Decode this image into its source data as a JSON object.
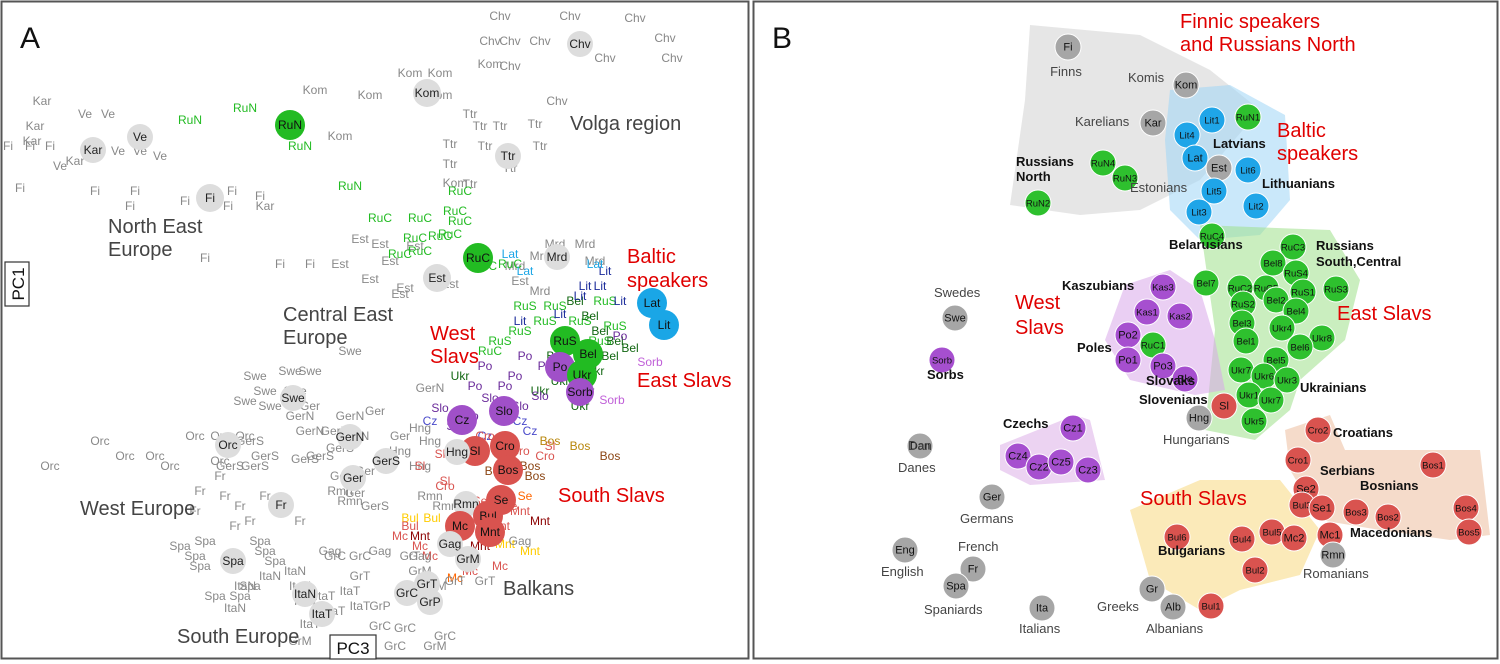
{
  "panel_a": {
    "letter": "A",
    "axis_y_label": "PC1",
    "axis_x_label": "PC3",
    "colors": {
      "grey": "#888888",
      "green": "#22bb22",
      "blue": "#1aa6e6",
      "red": "#d9534f",
      "purple": "#a050c8",
      "darkgreen": "#116611"
    },
    "region_labels": [
      {
        "text": "Volga region",
        "color": "#444444"
      },
      {
        "text": "North East",
        "color": "#444444"
      },
      {
        "text": "Europe",
        "color": "#444444"
      },
      {
        "text": "Central East",
        "color": "#444444"
      },
      {
        "text": "Europe",
        "color": "#444444"
      },
      {
        "text": "West Europe",
        "color": "#444444"
      },
      {
        "text": "South Europe",
        "color": "#444444"
      },
      {
        "text": "Balkans",
        "color": "#444444"
      },
      {
        "text": "West",
        "color": "#e00000"
      },
      {
        "text": "Slavs",
        "color": "#e00000"
      },
      {
        "text": "Baltic",
        "color": "#e00000"
      },
      {
        "text": "speakers",
        "color": "#e00000"
      },
      {
        "text": "East Slavs",
        "color": "#e00000"
      },
      {
        "text": "South Slavs",
        "color": "#e00000"
      }
    ],
    "centroids": [
      {
        "label": "Chv",
        "color": "#dddddd",
        "text_color": "#222222"
      },
      {
        "label": "Kom",
        "color": "#dddddd",
        "text_color": "#222222"
      },
      {
        "label": "RuN",
        "color": "#22bb22",
        "text_color": "#111111"
      },
      {
        "label": "Ve",
        "color": "#dddddd",
        "text_color": "#222222"
      },
      {
        "label": "Kar",
        "color": "#dddddd",
        "text_color": "#222222"
      },
      {
        "label": "Ttr",
        "color": "#dddddd",
        "text_color": "#222222"
      },
      {
        "label": "Fi",
        "color": "#dddddd",
        "text_color": "#222222"
      },
      {
        "label": "RuC",
        "color": "#22bb22",
        "text_color": "#111111"
      },
      {
        "label": "Mrd",
        "color": "#dddddd",
        "text_color": "#222222"
      },
      {
        "label": "Est",
        "color": "#dddddd",
        "text_color": "#222222"
      },
      {
        "label": "Lat",
        "color": "#1aa6e6",
        "text_color": "#111111"
      },
      {
        "label": "Lit",
        "color": "#1aa6e6",
        "text_color": "#111111"
      },
      {
        "label": "RuS",
        "color": "#22bb22",
        "text_color": "#111111"
      },
      {
        "label": "Bel",
        "color": "#22bb22",
        "text_color": "#111111"
      },
      {
        "label": "Po",
        "color": "#a050c8",
        "text_color": "#111111"
      },
      {
        "label": "Ukr",
        "color": "#22bb22",
        "text_color": "#111111"
      },
      {
        "label": "Sorb",
        "color": "#a050c8",
        "text_color": "#111111"
      },
      {
        "label": "Swe",
        "color": "#dddddd",
        "text_color": "#222222"
      },
      {
        "label": "Slo",
        "color": "#a050c8",
        "text_color": "#111111"
      },
      {
        "label": "Cz",
        "color": "#a050c8",
        "text_color": "#111111"
      },
      {
        "label": "GerN",
        "color": "#dddddd",
        "text_color": "#222222"
      },
      {
        "label": "Orc",
        "color": "#dddddd",
        "text_color": "#222222"
      },
      {
        "label": "Sl",
        "color": "#d9534f",
        "text_color": "#111111"
      },
      {
        "label": "Cro",
        "color": "#d9534f",
        "text_color": "#111111"
      },
      {
        "label": "Hng",
        "color": "#dddddd",
        "text_color": "#222222"
      },
      {
        "label": "Bos",
        "color": "#d9534f",
        "text_color": "#111111"
      },
      {
        "label": "GerS",
        "color": "#dddddd",
        "text_color": "#222222"
      },
      {
        "label": "Ger",
        "color": "#dddddd",
        "text_color": "#222222"
      },
      {
        "label": "Fr",
        "color": "#dddddd",
        "text_color": "#222222"
      },
      {
        "label": "Rmn",
        "color": "#dddddd",
        "text_color": "#222222"
      },
      {
        "label": "Se",
        "color": "#d9534f",
        "text_color": "#111111"
      },
      {
        "label": "Bul",
        "color": "#d9534f",
        "text_color": "#111111"
      },
      {
        "label": "Mc",
        "color": "#d9534f",
        "text_color": "#111111"
      },
      {
        "label": "Mnt",
        "color": "#d9534f",
        "text_color": "#111111"
      },
      {
        "label": "Gag",
        "color": "#dddddd",
        "text_color": "#222222"
      },
      {
        "label": "GrM",
        "color": "#dddddd",
        "text_color": "#222222"
      },
      {
        "label": "Spa",
        "color": "#dddddd",
        "text_color": "#222222"
      },
      {
        "label": "ItaN",
        "color": "#dddddd",
        "text_color": "#222222"
      },
      {
        "label": "ItaT",
        "color": "#dddddd",
        "text_color": "#222222"
      },
      {
        "label": "GrT",
        "color": "#dddddd",
        "text_color": "#222222"
      },
      {
        "label": "GrC",
        "color": "#dddddd",
        "text_color": "#222222"
      },
      {
        "label": "GrP",
        "color": "#dddddd",
        "text_color": "#222222"
      }
    ]
  },
  "panel_b": {
    "letter": "B",
    "group_labels": [
      {
        "text": "Finnic speakers",
        "color": "#e00000"
      },
      {
        "text": "and Russians North",
        "color": "#e00000"
      },
      {
        "text": "Baltic",
        "color": "#e00000"
      },
      {
        "text": "speakers",
        "color": "#e00000"
      },
      {
        "text": "West",
        "color": "#e00000"
      },
      {
        "text": "Slavs",
        "color": "#e00000"
      },
      {
        "text": "East Slavs",
        "color": "#e00000"
      },
      {
        "text": "South Slavs",
        "color": "#e00000"
      }
    ],
    "population_labels": [
      {
        "text": "Finns",
        "bold": false
      },
      {
        "text": "Komis",
        "bold": false
      },
      {
        "text": "Karelians",
        "bold": false
      },
      {
        "text": "Russians",
        "bold": true
      },
      {
        "text": "North",
        "bold": true
      },
      {
        "text": "Latvians",
        "bold": true
      },
      {
        "text": "Estonians",
        "bold": false
      },
      {
        "text": "Lithuanians",
        "bold": true
      },
      {
        "text": "Belarusians",
        "bold": true
      },
      {
        "text": "Russians",
        "bold": true
      },
      {
        "text": "South,Central",
        "bold": true
      },
      {
        "text": "Swedes",
        "bold": false
      },
      {
        "text": "Kaszubians",
        "bold": true
      },
      {
        "text": "Poles",
        "bold": true
      },
      {
        "text": "Sorbs",
        "bold": true
      },
      {
        "text": "Slovaks",
        "bold": true
      },
      {
        "text": "Slovenians",
        "bold": true
      },
      {
        "text": "Hungarians",
        "bold": false
      },
      {
        "text": "Ukrainians",
        "bold": true
      },
      {
        "text": "Czechs",
        "bold": true
      },
      {
        "text": "Croatians",
        "bold": true
      },
      {
        "text": "Dan",
        "bold": false
      },
      {
        "text": "Danes",
        "bold": false
      },
      {
        "text": "Serbians",
        "bold": true
      },
      {
        "text": "Bosnians",
        "bold": true
      },
      {
        "text": "Germans",
        "bold": false
      },
      {
        "text": "Macedonians",
        "bold": true
      },
      {
        "text": "Bulgarians",
        "bold": true
      },
      {
        "text": "French",
        "bold": false
      },
      {
        "text": "English",
        "bold": false
      },
      {
        "text": "Romanians",
        "bold": false
      },
      {
        "text": "Spaniards",
        "bold": false
      },
      {
        "text": "Greeks",
        "bold": false
      },
      {
        "text": "Italians",
        "bold": false
      },
      {
        "text": "Albanians",
        "bold": false
      }
    ],
    "nodes": [
      {
        "label": "Fi",
        "group": "grey"
      },
      {
        "label": "Kom",
        "group": "grey"
      },
      {
        "label": "Kar",
        "group": "grey"
      },
      {
        "label": "RuN1",
        "group": "green"
      },
      {
        "label": "RuN4",
        "group": "green"
      },
      {
        "label": "RuN3",
        "group": "green"
      },
      {
        "label": "RuN2",
        "group": "green"
      },
      {
        "label": "Lit1",
        "group": "blue"
      },
      {
        "label": "Lit4",
        "group": "blue"
      },
      {
        "label": "Lat",
        "group": "blue"
      },
      {
        "label": "Est",
        "group": "grey"
      },
      {
        "label": "Lit6",
        "group": "blue"
      },
      {
        "label": "Lit5",
        "group": "blue"
      },
      {
        "label": "Lit3",
        "group": "blue"
      },
      {
        "label": "Lit2",
        "group": "blue"
      },
      {
        "label": "RuC4",
        "group": "green"
      },
      {
        "label": "RuC3",
        "group": "green"
      },
      {
        "label": "Bel8",
        "group": "green"
      },
      {
        "label": "RuS4",
        "group": "green"
      },
      {
        "label": "RuS3",
        "group": "green"
      },
      {
        "label": "Bel7",
        "group": "green"
      },
      {
        "label": "RuC2",
        "group": "green"
      },
      {
        "label": "RuC5",
        "group": "green"
      },
      {
        "label": "RuS1",
        "group": "green"
      },
      {
        "label": "RuS2",
        "group": "green"
      },
      {
        "label": "Bel2",
        "group": "green"
      },
      {
        "label": "Bel4",
        "group": "green"
      },
      {
        "label": "Bel3",
        "group": "green"
      },
      {
        "label": "Ukr4",
        "group": "green"
      },
      {
        "label": "Ukr8",
        "group": "green"
      },
      {
        "label": "Bel1",
        "group": "green"
      },
      {
        "label": "Bel6",
        "group": "green"
      },
      {
        "label": "Bel5",
        "group": "green"
      },
      {
        "label": "Ukr7",
        "group": "green"
      },
      {
        "label": "Ukr6",
        "group": "green"
      },
      {
        "label": "Ukr3",
        "group": "green"
      },
      {
        "label": "Ukr1",
        "group": "green"
      },
      {
        "label": "Ukr7",
        "group": "green"
      },
      {
        "label": "Ukr5",
        "group": "green"
      },
      {
        "label": "Kas3",
        "group": "purple"
      },
      {
        "label": "Kas1",
        "group": "purple"
      },
      {
        "label": "Kas2",
        "group": "purple"
      },
      {
        "label": "Po2",
        "group": "purple"
      },
      {
        "label": "Po1",
        "group": "purple"
      },
      {
        "label": "RuC1",
        "group": "green"
      },
      {
        "label": "Po3",
        "group": "purple"
      },
      {
        "label": "Slo",
        "group": "purple"
      },
      {
        "label": "Swe",
        "group": "grey"
      },
      {
        "label": "Sorb",
        "group": "purple"
      },
      {
        "label": "Sl",
        "group": "red"
      },
      {
        "label": "Hng",
        "group": "grey"
      },
      {
        "label": "Cz1",
        "group": "purple"
      },
      {
        "label": "Cz4",
        "group": "purple"
      },
      {
        "label": "Cz2",
        "group": "purple"
      },
      {
        "label": "Cz5",
        "group": "purple"
      },
      {
        "label": "Cz3",
        "group": "purple"
      },
      {
        "label": "Cro2",
        "group": "red"
      },
      {
        "label": "Cro1",
        "group": "red"
      },
      {
        "label": "Bos1",
        "group": "red"
      },
      {
        "label": "Se2",
        "group": "red"
      },
      {
        "label": "Bul3",
        "group": "red"
      },
      {
        "label": "Se1",
        "group": "red"
      },
      {
        "label": "Bos3",
        "group": "red"
      },
      {
        "label": "Bos2",
        "group": "red"
      },
      {
        "label": "Bos4",
        "group": "red"
      },
      {
        "label": "Bos5",
        "group": "red"
      },
      {
        "label": "Bul6",
        "group": "red"
      },
      {
        "label": "Bul4",
        "group": "red"
      },
      {
        "label": "Bul5",
        "group": "red"
      },
      {
        "label": "Mc2",
        "group": "red"
      },
      {
        "label": "Mc1",
        "group": "red"
      },
      {
        "label": "Bul2",
        "group": "red"
      },
      {
        "label": "Bul1",
        "group": "red"
      },
      {
        "label": "Rmn",
        "group": "grey"
      },
      {
        "label": "Dan",
        "group": "grey"
      },
      {
        "label": "Ger",
        "group": "grey"
      },
      {
        "label": "Eng",
        "group": "grey"
      },
      {
        "label": "Fr",
        "group": "grey"
      },
      {
        "label": "Spa",
        "group": "grey"
      },
      {
        "label": "Gr",
        "group": "grey"
      },
      {
        "label": "Alb",
        "group": "grey"
      },
      {
        "label": "Ita",
        "group": "grey"
      }
    ]
  },
  "chart_data": [
    {
      "type": "scatter",
      "title": "",
      "xlabel": "PC3",
      "ylabel": "PC1",
      "grid": false,
      "series": [
        {
          "name": "",
          "points": [
            "Chv",
            "Kom",
            "RuN",
            "Ve",
            "Kar",
            "Ttr",
            "Fi",
            "RuC",
            "Mrd",
            "Est",
            "Lat",
            "Lit",
            "RuS",
            "Bel",
            "Po",
            "Ukr",
            "Sorb",
            "Swe",
            "Slo",
            "Cz",
            "GerN",
            "Orc",
            "Sl",
            "Cro",
            "Hng",
            "Bos",
            "GerS",
            "Ger",
            "Fr",
            "Rmn",
            "Se",
            "Bul",
            "Mc",
            "Mnt",
            "Gag",
            "GrM",
            "Spa",
            "ItaN",
            "ItaT",
            "GrT",
            "GrC",
            "GrP"
          ]
        }
      ]
    },
    {
      "type": "scatter",
      "title": "",
      "xlabel": "",
      "ylabel": "",
      "grid": false,
      "series": [
        {
          "name": "",
          "points": [
            "Finnic speakers and Russians North",
            "Baltic speakers",
            "West Slavs",
            "East Slavs",
            "South Slavs"
          ]
        }
      ]
    }
  ]
}
